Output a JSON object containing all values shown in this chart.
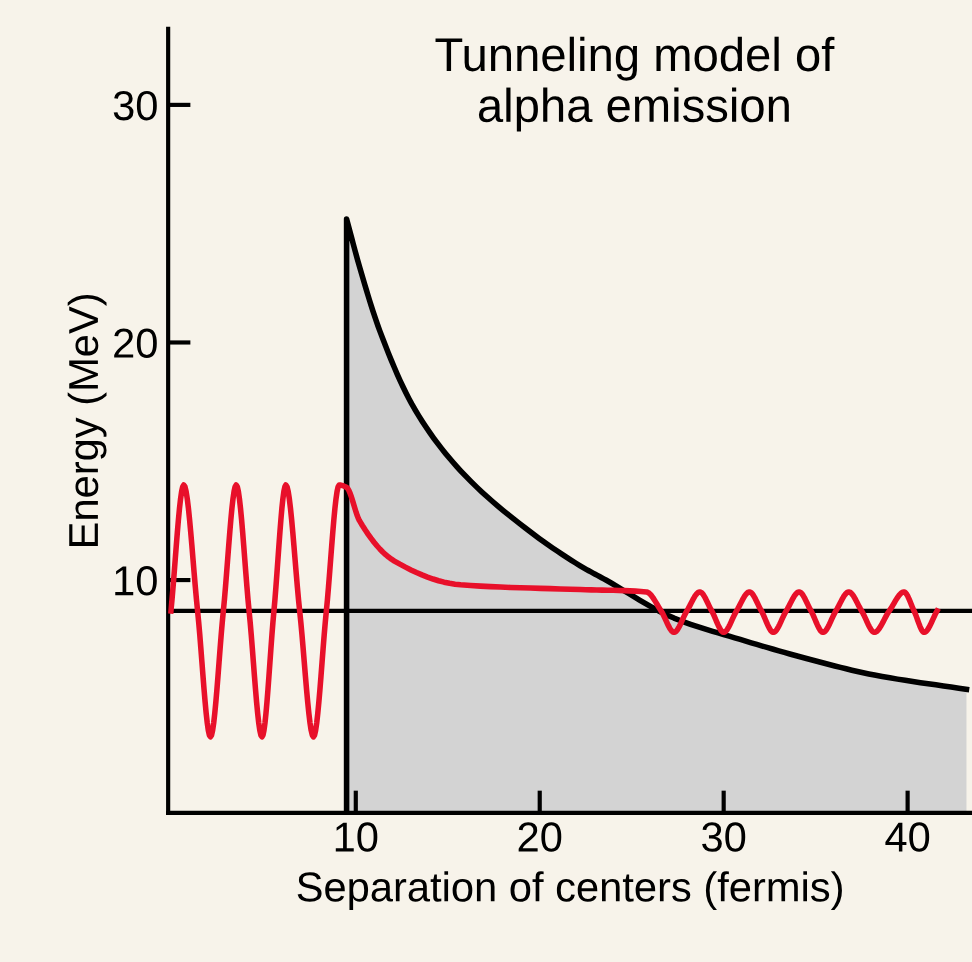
{
  "chart_data": {
    "type": "line",
    "title": "Tunneling model of\nalpha emission",
    "xlabel": "Separation of centers (fermis)",
    "ylabel": "Energy (MeV)",
    "xlim": [
      -0.2,
      43.5
    ],
    "ylim": [
      0.2,
      33.2
    ],
    "xticks": [
      10,
      20,
      30,
      40
    ],
    "yticks": [
      10,
      20,
      30
    ],
    "grid": false,
    "marker": "none",
    "line_style": "solid",
    "ref_lines": [
      {
        "axis": "y",
        "value": 8.7,
        "color": "#000000"
      }
    ],
    "series": [
      {
        "type": "area",
        "color": "#d3d3d3",
        "x": [
          9.5,
          10.2,
          11.3,
          13.2,
          15.7,
          19.2,
          22.2,
          23.6,
          27.3,
          30.9,
          34.5,
          38.2,
          43.2
        ],
        "values": [
          25.2,
          23.2,
          20.5,
          17.2,
          14.6,
          12.2,
          10.6,
          10.0,
          8.4,
          7.5,
          6.7,
          6.0,
          5.4
        ]
      },
      {
        "color": "#e8102a",
        "x": [
          -0.05,
          0.65,
          1.4,
          2.1,
          2.8,
          3.5,
          4.2,
          4.9,
          5.55,
          6.2,
          6.95,
          7.7,
          8.4,
          9.1,
          9.5,
          10.2,
          12.1,
          15.7,
          22.2,
          25.8,
          26.6,
          27.3,
          28.0,
          28.7,
          29.35,
          30.0,
          30.7,
          31.4,
          32.05,
          32.7,
          33.4,
          34.1,
          34.75,
          35.4,
          36.1,
          36.8,
          37.5,
          38.2,
          39.0,
          39.8,
          40.35,
          40.9,
          41.6
        ],
        "values": [
          8.7,
          14,
          8.7,
          3.4,
          8.7,
          14,
          8.7,
          3.4,
          8.7,
          14,
          8.7,
          3.4,
          8.7,
          14,
          13.9,
          12.5,
          10.8,
          9.8,
          9.6,
          9.5,
          8.7,
          7.8,
          8.7,
          9.5,
          8.7,
          7.8,
          8.7,
          9.5,
          8.7,
          7.8,
          8.7,
          9.5,
          8.7,
          7.8,
          8.7,
          9.5,
          8.7,
          7.8,
          8.7,
          9.5,
          8.7,
          7.8,
          8.7
        ]
      }
    ]
  }
}
